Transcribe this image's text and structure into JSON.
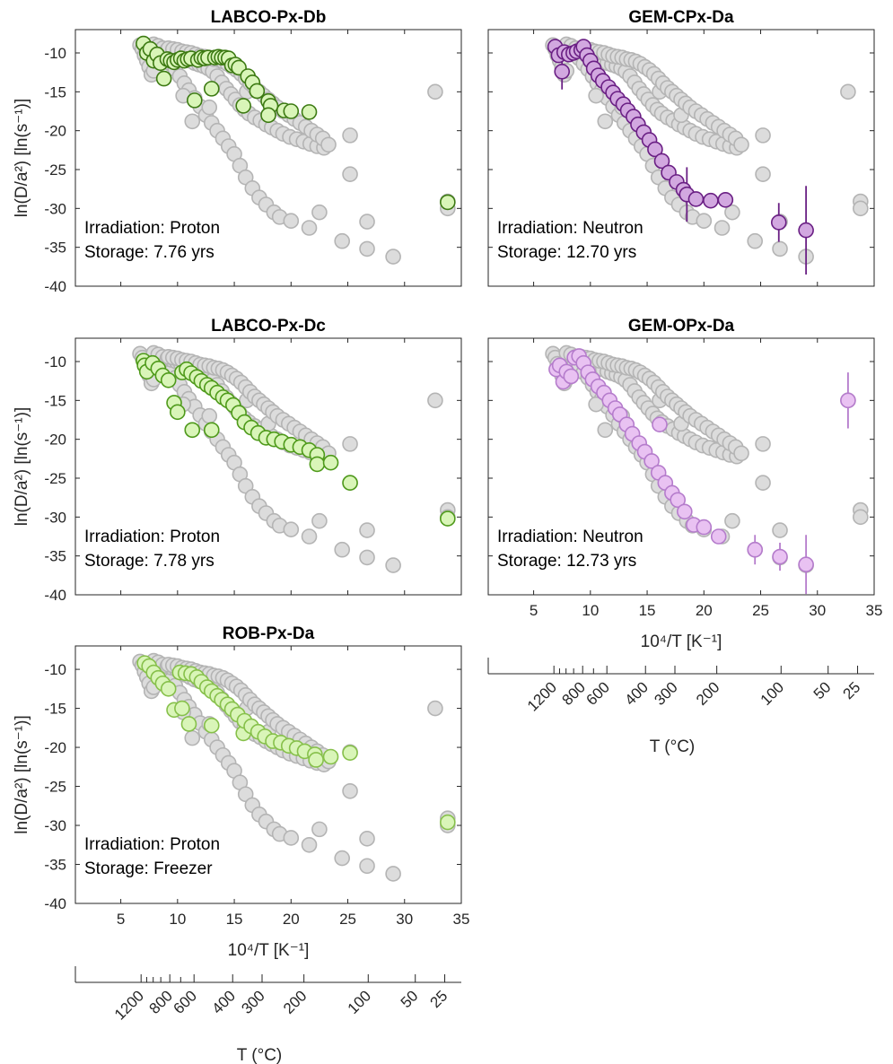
{
  "figure": {
    "annotation_lines": [
      "Irradiation",
      "Storage"
    ]
  },
  "chart_data": [
    {
      "type": "scatter",
      "title": "LABCO-Px-Db",
      "ylabel": "ln(D/a²) [ln(s⁻¹)]",
      "xlabel": "",
      "xlim": [
        1,
        35
      ],
      "ylim": [
        -40,
        -7
      ],
      "xticks": [
        5,
        10,
        15,
        20,
        25,
        30,
        35
      ],
      "xtick_labels_shown": false,
      "yticks": [
        -40,
        -35,
        -30,
        -25,
        -20,
        -15,
        -10
      ],
      "irradiation": "Proton",
      "storage": "7.76 yrs",
      "highlight_color": "#d9f5b8",
      "highlight_edge": "#3c7a12",
      "highlight_points": [
        [
          7.0,
          -8.8
        ],
        [
          7.3,
          -10.0
        ],
        [
          7.6,
          -9.5
        ],
        [
          7.9,
          -11.0
        ],
        [
          8.2,
          -10.2
        ],
        [
          8.5,
          -11.3
        ],
        [
          8.8,
          -13.3
        ],
        [
          9.1,
          -10.8
        ],
        [
          9.4,
          -11.0
        ],
        [
          9.7,
          -11.2
        ],
        [
          10.0,
          -10.9
        ],
        [
          10.3,
          -10.7
        ],
        [
          10.6,
          -11.0
        ],
        [
          10.9,
          -10.8
        ],
        [
          11.2,
          -10.7
        ],
        [
          11.5,
          -16.1
        ],
        [
          11.8,
          -10.9
        ],
        [
          12.1,
          -10.6
        ],
        [
          12.4,
          -10.7
        ],
        [
          12.7,
          -10.6
        ],
        [
          13.0,
          -14.6
        ],
        [
          13.3,
          -10.6
        ],
        [
          13.6,
          -10.5
        ],
        [
          13.9,
          -10.6
        ],
        [
          14.2,
          -10.6
        ],
        [
          14.5,
          -10.7
        ],
        [
          14.8,
          -11.6
        ],
        [
          15.1,
          -11.5
        ],
        [
          15.4,
          -11.9
        ],
        [
          15.8,
          -16.8
        ],
        [
          16.2,
          -13.0
        ],
        [
          16.6,
          -13.8
        ],
        [
          17.0,
          -14.9
        ],
        [
          18.0,
          -16.2
        ],
        [
          18.2,
          -16.8
        ],
        [
          18.0,
          -18.0
        ],
        [
          19.4,
          -17.4
        ],
        [
          20.0,
          -17.5
        ],
        [
          21.6,
          -17.6
        ],
        [
          33.8,
          -29.2
        ]
      ],
      "highlight_errors": [
        [
          33.8,
          -29.2,
          0.9
        ]
      ]
    },
    {
      "type": "scatter",
      "title": "GEM-CPx-Da",
      "ylabel": "",
      "xlabel": "",
      "xlim": [
        1,
        35
      ],
      "ylim": [
        -40,
        -7
      ],
      "xticks": [
        5,
        10,
        15,
        20,
        25,
        30,
        35
      ],
      "xtick_labels_shown": false,
      "yticks": [
        -40,
        -35,
        -30,
        -25,
        -20,
        -15,
        -10
      ],
      "irradiation": "Neutron",
      "storage": "12.70 yrs",
      "highlight_color": "#d2a8e0",
      "highlight_edge": "#6a1f84",
      "highlight_points": [
        [
          6.9,
          -9.2
        ],
        [
          7.2,
          -10.3
        ],
        [
          7.5,
          -12.4
        ],
        [
          7.7,
          -9.9
        ],
        [
          8.1,
          -10.2
        ],
        [
          8.5,
          -10.0
        ],
        [
          8.8,
          -9.8
        ],
        [
          9.2,
          -9.6
        ],
        [
          9.4,
          -9.2
        ],
        [
          9.7,
          -10.3
        ],
        [
          10.0,
          -11.0
        ],
        [
          10.3,
          -12.0
        ],
        [
          10.7,
          -12.9
        ],
        [
          11.1,
          -13.6
        ],
        [
          11.6,
          -14.4
        ],
        [
          12.0,
          -15.1
        ],
        [
          12.4,
          -15.9
        ],
        [
          12.9,
          -16.6
        ],
        [
          13.3,
          -17.4
        ],
        [
          13.8,
          -18.2
        ],
        [
          14.2,
          -19.2
        ],
        [
          14.7,
          -20.2
        ],
        [
          15.2,
          -21.2
        ],
        [
          15.7,
          -22.4
        ],
        [
          16.3,
          -23.9
        ],
        [
          16.9,
          -25.4
        ],
        [
          17.6,
          -26.6
        ],
        [
          18.2,
          -27.6
        ],
        [
          18.5,
          -28.2
        ],
        [
          19.3,
          -28.8
        ],
        [
          20.6,
          -29.0
        ],
        [
          21.9,
          -28.9
        ],
        [
          26.6,
          -31.8
        ],
        [
          29.0,
          -32.8
        ]
      ],
      "highlight_errors": [
        [
          7.5,
          -12.4,
          2.3
        ],
        [
          18.5,
          -28.2,
          3.5
        ],
        [
          26.6,
          -31.8,
          2.5
        ],
        [
          29.0,
          -32.8,
          5.7
        ]
      ]
    },
    {
      "type": "scatter",
      "title": "LABCO-Px-Dc",
      "ylabel": "ln(D/a²) [ln(s⁻¹)]",
      "xlabel": "",
      "xlim": [
        1,
        35
      ],
      "ylim": [
        -40,
        -7
      ],
      "xticks": [
        5,
        10,
        15,
        20,
        25,
        30,
        35
      ],
      "xtick_labels_shown": false,
      "yticks": [
        -40,
        -35,
        -30,
        -25,
        -20,
        -15,
        -10
      ],
      "irradiation": "Proton",
      "storage": "7.78 yrs",
      "highlight_color": "#d9f5b8",
      "highlight_edge": "#4e9a1a",
      "highlight_points": [
        [
          7.0,
          -9.9
        ],
        [
          7.1,
          -10.5
        ],
        [
          7.3,
          -11.3
        ],
        [
          7.8,
          -10.2
        ],
        [
          8.3,
          -10.9
        ],
        [
          8.7,
          -11.8
        ],
        [
          9.2,
          -12.4
        ],
        [
          9.7,
          -15.3
        ],
        [
          10.0,
          -16.5
        ],
        [
          10.4,
          -11.4
        ],
        [
          10.8,
          -11.0
        ],
        [
          11.2,
          -11.5
        ],
        [
          11.7,
          -12.0
        ],
        [
          11.3,
          -18.8
        ],
        [
          12.1,
          -12.5
        ],
        [
          12.6,
          -13.0
        ],
        [
          13.0,
          -18.8
        ],
        [
          13.0,
          -13.4
        ],
        [
          13.5,
          -14.0
        ],
        [
          14.0,
          -14.6
        ],
        [
          14.4,
          -15.0
        ],
        [
          14.9,
          -15.6
        ],
        [
          15.4,
          -16.6
        ],
        [
          15.9,
          -17.8
        ],
        [
          16.5,
          -18.5
        ],
        [
          17.1,
          -19.2
        ],
        [
          17.8,
          -19.8
        ],
        [
          18.5,
          -20.0
        ],
        [
          19.2,
          -20.3
        ],
        [
          20.0,
          -20.7
        ],
        [
          20.8,
          -21.0
        ],
        [
          21.6,
          -21.4
        ],
        [
          22.3,
          -22.0
        ],
        [
          22.3,
          -23.2
        ],
        [
          23.5,
          -23.0
        ],
        [
          25.2,
          -25.6
        ],
        [
          33.8,
          -30.2
        ]
      ],
      "highlight_errors": []
    },
    {
      "type": "scatter",
      "title": "GEM-OPx-Da",
      "ylabel": "",
      "xlabel": "10⁴/T [K⁻¹]",
      "xlim": [
        1,
        35
      ],
      "ylim": [
        -40,
        -7
      ],
      "xticks": [
        5,
        10,
        15,
        20,
        25,
        30,
        35
      ],
      "xtick_labels_shown": true,
      "yticks": [
        -40,
        -35,
        -30,
        -25,
        -20,
        -15,
        -10
      ],
      "irradiation": "Neutron",
      "storage": "12.73 yrs",
      "highlight_color": "#e9c2f2",
      "highlight_edge": "#b57ccc",
      "highlight_points": [
        [
          7.0,
          -11.0
        ],
        [
          7.3,
          -10.5
        ],
        [
          7.6,
          -12.6
        ],
        [
          7.9,
          -11.3
        ],
        [
          8.3,
          -11.9
        ],
        [
          8.6,
          -9.5
        ],
        [
          9.0,
          -9.3
        ],
        [
          9.4,
          -10.2
        ],
        [
          9.8,
          -11.4
        ],
        [
          10.2,
          -12.3
        ],
        [
          10.7,
          -13.2
        ],
        [
          11.2,
          -14.0
        ],
        [
          11.7,
          -15.0
        ],
        [
          12.2,
          -16.0
        ],
        [
          12.6,
          -16.8
        ],
        [
          13.2,
          -18.1
        ],
        [
          13.7,
          -19.3
        ],
        [
          14.3,
          -20.5
        ],
        [
          14.8,
          -21.6
        ],
        [
          15.4,
          -22.8
        ],
        [
          16.0,
          -24.3
        ],
        [
          16.1,
          -18.1
        ],
        [
          16.6,
          -25.6
        ],
        [
          17.2,
          -26.9
        ],
        [
          17.7,
          -27.8
        ],
        [
          18.3,
          -29.3
        ],
        [
          19.1,
          -31.0
        ],
        [
          20.0,
          -31.3
        ],
        [
          21.3,
          -32.5
        ],
        [
          24.5,
          -34.2
        ],
        [
          26.7,
          -35.1
        ],
        [
          29.0,
          -36.1
        ],
        [
          32.7,
          -15.0
        ]
      ],
      "highlight_errors": [
        [
          24.5,
          -34.2,
          1.9
        ],
        [
          26.7,
          -35.1,
          1.8
        ],
        [
          29.0,
          -36.1,
          3.8
        ],
        [
          32.7,
          -15.0,
          3.6
        ]
      ]
    },
    {
      "type": "scatter",
      "title": "ROB-Px-Da",
      "ylabel": "ln(D/a²) [ln(s⁻¹)]",
      "xlabel": "10⁴/T [K⁻¹]",
      "xlim": [
        1,
        35
      ],
      "ylim": [
        -40,
        -7
      ],
      "xticks": [
        5,
        10,
        15,
        20,
        25,
        30,
        35
      ],
      "xtick_labels_shown": true,
      "yticks": [
        -40,
        -35,
        -30,
        -25,
        -20,
        -15,
        -10
      ],
      "irradiation": "Proton",
      "storage": "Freezer",
      "highlight_color": "#d9f5b8",
      "highlight_edge": "#86c04a",
      "highlight_points": [
        [
          7.1,
          -9.2
        ],
        [
          7.5,
          -9.6
        ],
        [
          7.9,
          -10.4
        ],
        [
          8.3,
          -11.1
        ],
        [
          8.7,
          -11.8
        ],
        [
          9.2,
          -12.5
        ],
        [
          9.7,
          -15.2
        ],
        [
          10.2,
          -10.4
        ],
        [
          10.4,
          -15.0
        ],
        [
          10.7,
          -10.5
        ],
        [
          11.0,
          -17.0
        ],
        [
          11.2,
          -10.6
        ],
        [
          11.7,
          -11.0
        ],
        [
          12.1,
          -11.6
        ],
        [
          12.6,
          -12.3
        ],
        [
          13.0,
          -17.2
        ],
        [
          13.0,
          -12.8
        ],
        [
          13.5,
          -13.4
        ],
        [
          13.9,
          -13.9
        ],
        [
          14.4,
          -14.5
        ],
        [
          14.8,
          -15.1
        ],
        [
          15.3,
          -15.8
        ],
        [
          15.8,
          -18.2
        ],
        [
          15.9,
          -16.6
        ],
        [
          16.5,
          -17.3
        ],
        [
          17.1,
          -18.0
        ],
        [
          17.7,
          -18.6
        ],
        [
          18.4,
          -19.2
        ],
        [
          19.1,
          -19.4
        ],
        [
          19.8,
          -19.8
        ],
        [
          20.5,
          -20.1
        ],
        [
          21.2,
          -20.5
        ],
        [
          22.1,
          -20.9
        ],
        [
          22.2,
          -21.6
        ],
        [
          23.5,
          -21.2
        ],
        [
          25.2,
          -20.7
        ],
        [
          33.8,
          -29.6
        ]
      ],
      "highlight_errors": []
    }
  ],
  "reference_data": {
    "color": "#dcdcdc",
    "edge": "#b4b4b4",
    "points": [
      [
        6.7,
        -9.0
      ],
      [
        6.9,
        -9.5
      ],
      [
        7.1,
        -10.3
      ],
      [
        7.3,
        -11.0
      ],
      [
        7.5,
        -11.8
      ],
      [
        7.7,
        -12.8
      ],
      [
        7.9,
        -12.3
      ],
      [
        8.1,
        -9.3
      ],
      [
        8.3,
        -9.6
      ],
      [
        8.6,
        -10.2
      ],
      [
        9.0,
        -10.7
      ],
      [
        9.4,
        -11.4
      ],
      [
        9.8,
        -12.1
      ],
      [
        10.2,
        -13.0
      ],
      [
        10.6,
        -13.9
      ],
      [
        11.0,
        -14.8
      ],
      [
        11.5,
        -15.8
      ],
      [
        12.0,
        -16.9
      ],
      [
        12.5,
        -18.0
      ],
      [
        13.0,
        -19.0
      ],
      [
        13.5,
        -20.0
      ],
      [
        14.0,
        -21.0
      ],
      [
        14.5,
        -22.0
      ],
      [
        15.0,
        -23.0
      ],
      [
        15.5,
        -24.5
      ],
      [
        16.0,
        -26.0
      ],
      [
        16.6,
        -27.4
      ],
      [
        17.2,
        -28.6
      ],
      [
        17.8,
        -29.5
      ],
      [
        18.5,
        -30.5
      ],
      [
        19.0,
        -31.1
      ],
      [
        20.0,
        -31.6
      ],
      [
        21.6,
        -32.5
      ],
      [
        22.5,
        -30.5
      ],
      [
        24.5,
        -34.2
      ],
      [
        26.7,
        -35.2
      ],
      [
        29.0,
        -36.2
      ],
      [
        7.9,
        -8.9
      ],
      [
        8.3,
        -9.1
      ],
      [
        8.7,
        -9.4
      ],
      [
        9.1,
        -9.6
      ],
      [
        9.5,
        -9.8
      ],
      [
        9.9,
        -10.0
      ],
      [
        10.3,
        -10.3
      ],
      [
        10.7,
        -10.7
      ],
      [
        11.1,
        -11.0
      ],
      [
        11.5,
        -11.3
      ],
      [
        11.9,
        -11.5
      ],
      [
        12.3,
        -11.7
      ],
      [
        12.7,
        -12.0
      ],
      [
        13.1,
        -12.4
      ],
      [
        13.5,
        -13.0
      ],
      [
        13.9,
        -13.8
      ],
      [
        14.3,
        -14.6
      ],
      [
        14.7,
        -15.3
      ],
      [
        15.1,
        -16.0
      ],
      [
        15.5,
        -16.7
      ],
      [
        15.9,
        -17.3
      ],
      [
        16.3,
        -17.8
      ],
      [
        16.8,
        -18.3
      ],
      [
        17.3,
        -18.7
      ],
      [
        17.8,
        -19.2
      ],
      [
        18.3,
        -19.6
      ],
      [
        18.8,
        -20.0
      ],
      [
        19.3,
        -20.4
      ],
      [
        19.9,
        -20.8
      ],
      [
        20.5,
        -21.1
      ],
      [
        21.1,
        -21.4
      ],
      [
        21.7,
        -21.7
      ],
      [
        22.3,
        -22.0
      ],
      [
        22.9,
        -22.2
      ],
      [
        10.5,
        -15.5
      ],
      [
        11.3,
        -18.8
      ],
      [
        12.8,
        -17.0
      ],
      [
        16.1,
        -15.0
      ],
      [
        18.0,
        -18.0
      ],
      [
        9.2,
        -9.4
      ],
      [
        9.6,
        -9.5
      ],
      [
        10.0,
        -9.6
      ],
      [
        10.4,
        -9.8
      ],
      [
        10.8,
        -9.9
      ],
      [
        11.2,
        -10.0
      ],
      [
        11.6,
        -10.2
      ],
      [
        12.0,
        -10.4
      ],
      [
        12.4,
        -10.5
      ],
      [
        12.8,
        -10.6
      ],
      [
        13.2,
        -10.8
      ],
      [
        13.6,
        -10.9
      ],
      [
        14.0,
        -11.1
      ],
      [
        14.4,
        -11.4
      ],
      [
        14.8,
        -11.8
      ],
      [
        15.2,
        -12.2
      ],
      [
        15.6,
        -12.7
      ],
      [
        16.0,
        -13.3
      ],
      [
        16.4,
        -13.9
      ],
      [
        16.8,
        -14.5
      ],
      [
        17.2,
        -15.0
      ],
      [
        17.6,
        -15.5
      ],
      [
        18.0,
        -16.0
      ],
      [
        18.4,
        -16.5
      ],
      [
        18.8,
        -17.0
      ],
      [
        19.3,
        -17.5
      ],
      [
        19.8,
        -18.0
      ],
      [
        20.3,
        -18.5
      ],
      [
        20.8,
        -19.0
      ],
      [
        21.3,
        -19.5
      ],
      [
        21.8,
        -20.0
      ],
      [
        22.3,
        -20.5
      ],
      [
        22.8,
        -21.0
      ],
      [
        23.3,
        -21.8
      ],
      [
        25.2,
        -20.6
      ],
      [
        25.2,
        -25.6
      ],
      [
        26.7,
        -31.7
      ],
      [
        32.7,
        -15.0
      ],
      [
        33.8,
        -29.1
      ],
      [
        33.8,
        -30.0
      ]
    ]
  },
  "temp_axis": {
    "label": "T (°C)",
    "major_labels": [
      "1200",
      "800",
      "600",
      "400",
      "300",
      "200",
      "100",
      "50",
      "25"
    ],
    "major_celsius": [
      1200,
      800,
      600,
      400,
      300,
      200,
      100,
      50,
      25
    ],
    "minor_celsius": [
      1100,
      1000,
      900,
      700
    ]
  }
}
